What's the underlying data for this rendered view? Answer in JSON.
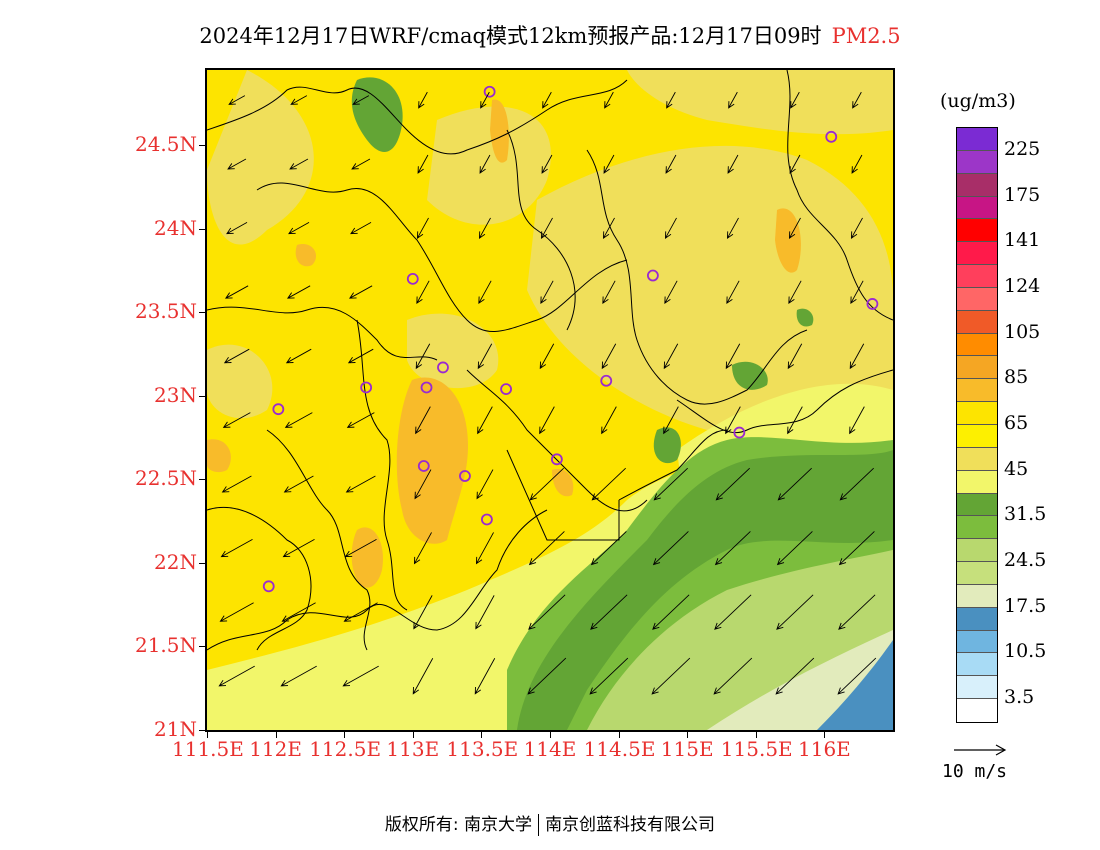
{
  "title": {
    "main": "2024年12月17日WRF/cmaq模式12km预报产品:12月17日09时",
    "pollutant": "PM2.5"
  },
  "colors": {
    "axis_label": "#e8312f",
    "site_marker": "#9a2ad0",
    "background_field": "#fde400",
    "coast_green": "#63a535",
    "sea_blue": "#4a90c0"
  },
  "map": {
    "lat_labels": [
      "24.5N",
      "24N",
      "23.5N",
      "23N",
      "22.5N",
      "22N",
      "21.5N",
      "21N"
    ],
    "lon_labels": [
      "111.5E",
      "112E",
      "112.5E",
      "113E",
      "113.5E",
      "114E",
      "114.5E",
      "115E",
      "115.5E",
      "116E"
    ],
    "lat_values": [
      24.5,
      24,
      23.5,
      23,
      22.5,
      22,
      21.5,
      21
    ],
    "lon_values": [
      111.5,
      112,
      112.5,
      113,
      113.5,
      114,
      114.5,
      115,
      115.5,
      116
    ],
    "lon_range": [
      111.5,
      116.5
    ],
    "lat_range": [
      21.0,
      24.95
    ],
    "sites": [
      {
        "lon": 113.56,
        "lat": 24.82
      },
      {
        "lon": 116.05,
        "lat": 24.55
      },
      {
        "lon": 113.0,
        "lat": 23.7
      },
      {
        "lon": 114.75,
        "lat": 23.72
      },
      {
        "lon": 116.35,
        "lat": 23.55
      },
      {
        "lon": 113.22,
        "lat": 23.17
      },
      {
        "lon": 112.66,
        "lat": 23.05
      },
      {
        "lon": 113.1,
        "lat": 23.05
      },
      {
        "lon": 113.68,
        "lat": 23.04
      },
      {
        "lon": 114.41,
        "lat": 23.09
      },
      {
        "lon": 112.02,
        "lat": 22.92
      },
      {
        "lon": 115.38,
        "lat": 22.78
      },
      {
        "lon": 113.08,
        "lat": 22.58
      },
      {
        "lon": 114.05,
        "lat": 22.62
      },
      {
        "lon": 113.38,
        "lat": 22.52
      },
      {
        "lon": 113.54,
        "lat": 22.26
      },
      {
        "lon": 111.95,
        "lat": 21.86
      }
    ]
  },
  "legend": {
    "unit": "(ug/m3)",
    "labels": [
      "225",
      "175",
      "141",
      "124",
      "105",
      "85",
      "65",
      "45",
      "31.5",
      "24.5",
      "17.5",
      "10.5",
      "3.5"
    ],
    "colors": [
      "#7b2bd3",
      "#9c36c8",
      "#a82e68",
      "#c71585",
      "#ff0000",
      "#ff1a4a",
      "#ff3f5c",
      "#ff6666",
      "#f05a28",
      "#ff8c00",
      "#f5a623",
      "#f8bb2a",
      "#fde400",
      "#fdf000",
      "#f0df5a",
      "#f2f66a",
      "#63a535",
      "#7cbd3d",
      "#b8d86e",
      "#c6e07c",
      "#e2ebbc",
      "#4a90c0",
      "#6fb5e0",
      "#a8dbf5",
      "#d8f0fb",
      "#ffffff"
    ]
  },
  "wind": {
    "reference_label": "10  m/s"
  },
  "footer": {
    "copyright_left": "版权所有: 南京大学",
    "copyright_right": "南京创蓝科技有限公司"
  }
}
